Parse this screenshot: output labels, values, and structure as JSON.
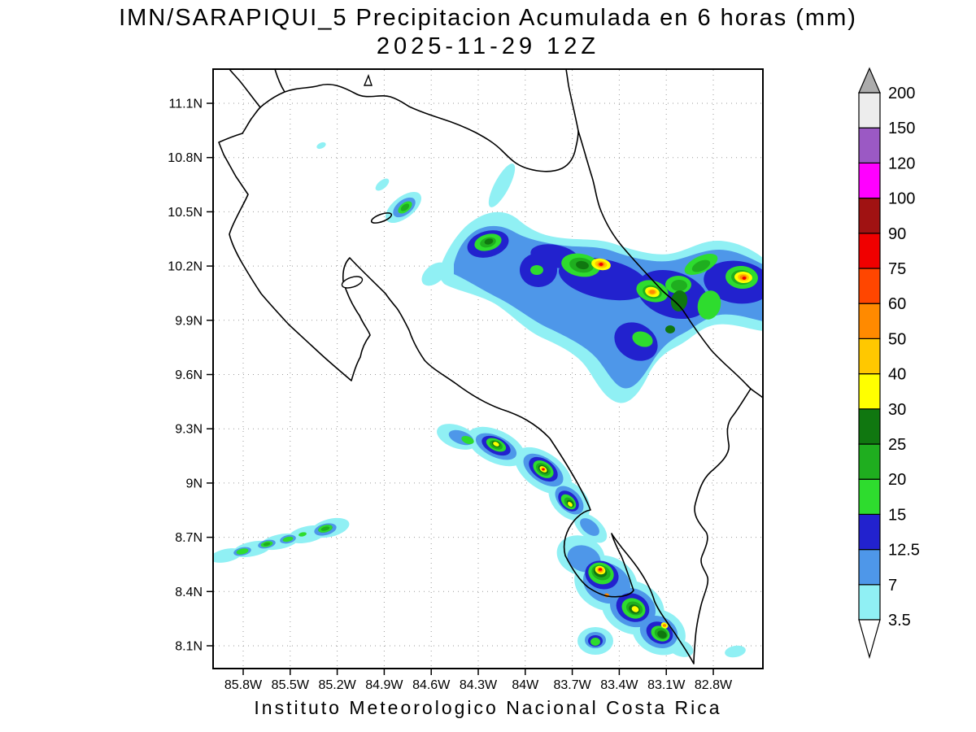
{
  "header": {
    "title_line1": "IMN/SARAPIQUI_5 Precipitacion Acumulada en 6 horas (mm)",
    "title_line2": "2025-11-29 12Z"
  },
  "footer": {
    "text": "Instituto Meteorologico Nacional Costa Rica"
  },
  "chart_data": {
    "type": "heatmap",
    "title": "IMN/SARAPIQUI_5 Precipitacion Acumulada en 6 horas (mm)",
    "subtitle": "2025-11-29 12Z",
    "model": "IMN/SARAPIQUI_5",
    "variable": "Precipitacion Acumulada en 6 horas",
    "units": "mm",
    "valid_time": "2025-11-29 12Z",
    "region": "Costa Rica",
    "grid": true,
    "legend_position": "right",
    "x_axis": {
      "label": "longitude",
      "ticks": [
        "85.8W",
        "85.5W",
        "85.2W",
        "84.9W",
        "84.6W",
        "84.3W",
        "84W",
        "83.7W",
        "83.4W",
        "83.1W",
        "82.8W"
      ]
    },
    "y_axis": {
      "label": "latitude",
      "ticks": [
        "11.1N",
        "10.8N",
        "10.5N",
        "10.2N",
        "9.9N",
        "9.6N",
        "9.3N",
        "9N",
        "8.7N",
        "8.4N",
        "8.1N"
      ]
    },
    "colorbar": {
      "levels": [
        "3.5",
        "7",
        "12.5",
        "15",
        "20",
        "25",
        "30",
        "40",
        "50",
        "60",
        "75",
        "90",
        "100",
        "120",
        "150",
        "200"
      ],
      "band_colors": [
        "#90F0F4",
        "#4E97E9",
        "#2222CE",
        "#2EDC2E",
        "#1FAE1F",
        "#107710",
        "#FFFF00",
        "#FFC800",
        "#FF8A00",
        "#FF4600",
        "#F00000",
        "#A01212",
        "#FF00FF",
        "#9B59C4",
        "#EDEDED"
      ],
      "below_min_color": "#FFFFFF",
      "above_max_color": "#ACACAC"
    },
    "precip_features": [
      {
        "name": "caribbean-northern-band",
        "description": "Heavy NW-SE oriented rain band across the northern plains and Caribbean, extending past the east edge of the map",
        "extent_lon": [
          -84.6,
          -82.5
        ],
        "extent_lat": [
          9.8,
          10.5
        ],
        "peaks": [
          {
            "lon": -83.51,
            "lat": 10.21,
            "peak_mm": 75
          },
          {
            "lon": -83.19,
            "lat": 10.05,
            "peak_mm": 50
          },
          {
            "lon": -82.6,
            "lat": 10.14,
            "peak_mm": 75
          },
          {
            "lon": -84.29,
            "lat": 10.33,
            "peak_mm": 25
          }
        ]
      },
      {
        "name": "arenal-cell",
        "peaks": [
          {
            "lon": -84.78,
            "lat": 10.52,
            "peak_mm": 20
          }
        ]
      },
      {
        "name": "central-pacific-band",
        "description": "Chain of convective cells along the central Pacific slope",
        "peaks": [
          {
            "lon": -84.19,
            "lat": 9.21,
            "peak_mm": 30
          },
          {
            "lon": -83.89,
            "lat": 9.07,
            "peak_mm": 75
          },
          {
            "lon": -83.71,
            "lat": 8.87,
            "peak_mm": 40
          }
        ]
      },
      {
        "name": "osa-golfo-dulce-cluster",
        "description": "Cluster of heavy cells over the Osa peninsula / Golfo Dulce area",
        "peaks": [
          {
            "lon": -83.52,
            "lat": 8.52,
            "peak_mm": 75
          },
          {
            "lon": -83.3,
            "lat": 8.3,
            "peak_mm": 40
          },
          {
            "lon": -83.11,
            "lat": 8.21,
            "peak_mm": 50
          }
        ]
      },
      {
        "name": "southwest-offshore-band",
        "description": "Weak band offshore southwest of the Nicoya peninsula",
        "extent_lon": [
          -85.98,
          -85.2
        ],
        "extent_lat": [
          8.55,
          8.78
        ],
        "peaks": [
          {
            "lon": -85.28,
            "lat": 8.75,
            "peak_mm": 20
          }
        ]
      }
    ]
  }
}
